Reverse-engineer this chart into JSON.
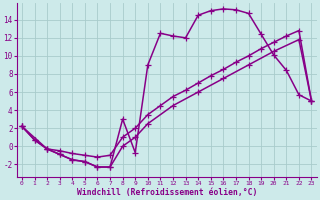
{
  "xlabel": "Windchill (Refroidissement éolien,°C)",
  "background_color": "#cdeaea",
  "grid_color": "#a8cccc",
  "line_color": "#880088",
  "x_ticks": [
    0,
    1,
    2,
    3,
    4,
    5,
    6,
    7,
    8,
    9,
    10,
    11,
    12,
    13,
    14,
    15,
    16,
    17,
    18,
    19,
    20,
    21,
    22,
    23
  ],
  "y_ticks": [
    -2,
    0,
    2,
    4,
    6,
    8,
    10,
    12,
    14
  ],
  "xlim": [
    -0.4,
    23.4
  ],
  "ylim": [
    -3.4,
    15.8
  ],
  "line1_x": [
    0,
    1,
    2,
    3,
    4,
    5,
    6,
    7,
    8,
    9,
    10,
    11,
    12,
    13,
    14,
    15,
    16,
    17,
    18,
    19,
    20,
    21,
    22,
    23
  ],
  "line1_y": [
    2.2,
    0.7,
    -0.3,
    -0.9,
    -1.5,
    -1.7,
    -2.3,
    -2.3,
    3.0,
    -0.7,
    9.0,
    12.5,
    12.2,
    12.0,
    14.5,
    15.0,
    15.2,
    15.1,
    14.7,
    12.4,
    10.1,
    8.4,
    5.7,
    5.0
  ],
  "line2_x": [
    0,
    1,
    2,
    3,
    4,
    5,
    6,
    7,
    8,
    9,
    10,
    11,
    12,
    13,
    14,
    15,
    16,
    17,
    18,
    19,
    20,
    21,
    22,
    23
  ],
  "line2_y": [
    2.2,
    0.7,
    -0.3,
    -0.5,
    -0.8,
    -1.0,
    -1.2,
    -1.0,
    1.0,
    2.0,
    3.5,
    4.5,
    5.5,
    6.2,
    7.0,
    7.8,
    8.5,
    9.3,
    10.0,
    10.8,
    11.5,
    12.2,
    12.8,
    5.0
  ],
  "line3_x": [
    0,
    2,
    3,
    4,
    5,
    6,
    7,
    8,
    9,
    10,
    12,
    14,
    16,
    18,
    20,
    22,
    23
  ],
  "line3_y": [
    2.2,
    -0.3,
    -0.9,
    -1.5,
    -1.7,
    -2.3,
    -2.3,
    0.0,
    1.0,
    2.5,
    4.5,
    6.0,
    7.5,
    9.0,
    10.5,
    11.8,
    5.0
  ],
  "markersize": 4,
  "linewidth": 1.1
}
